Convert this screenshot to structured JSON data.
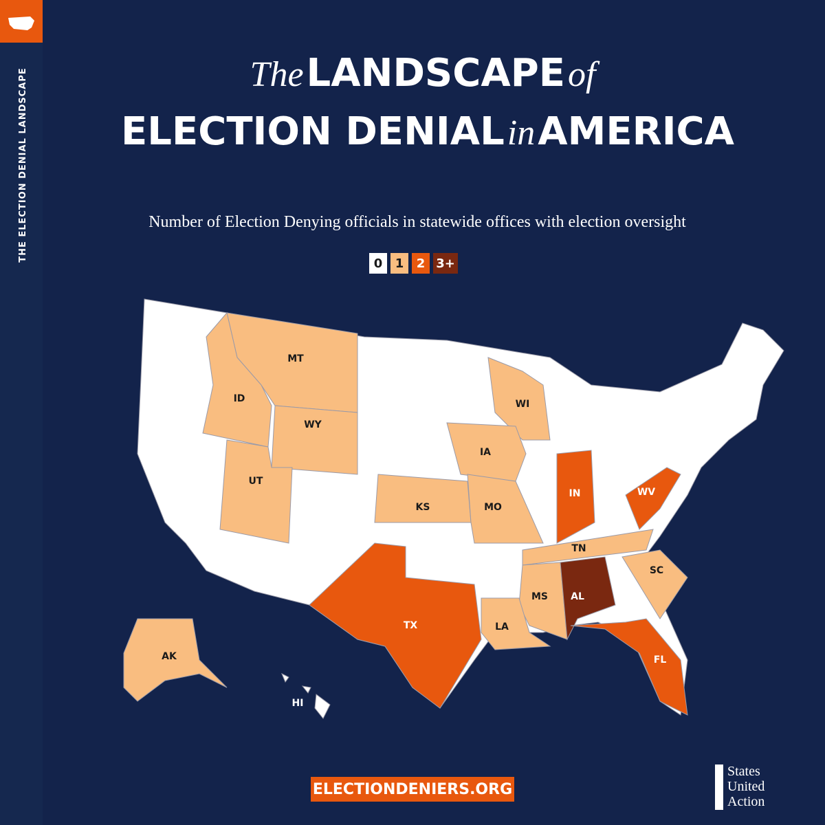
{
  "sidebar": {
    "text": "THE ELECTION DENIAL LANDSCAPE"
  },
  "title": {
    "line1": [
      "The",
      "LANDSCAPE",
      "of"
    ],
    "line2": [
      "ELECTION DENIAL",
      "in",
      "AMERICA"
    ]
  },
  "subtitle": "Number of Election Denying officials in statewide offices with election oversight",
  "legend": [
    {
      "label": "0",
      "color": "#ffffff",
      "text_color": "#1a1a1a"
    },
    {
      "label": "1",
      "color": "#f9bd80",
      "text_color": "#1a1a1a"
    },
    {
      "label": "2",
      "color": "#e8580e",
      "text_color": "#ffffff"
    },
    {
      "label": "3+",
      "color": "#7a2810",
      "text_color": "#ffffff"
    }
  ],
  "states": [
    {
      "label": "MT",
      "count": "1"
    },
    {
      "label": "ID",
      "count": "1"
    },
    {
      "label": "WY",
      "count": "1"
    },
    {
      "label": "UT",
      "count": "1"
    },
    {
      "label": "WI",
      "count": "1"
    },
    {
      "label": "IA",
      "count": "1"
    },
    {
      "label": "KS",
      "count": "1"
    },
    {
      "label": "MO",
      "count": "1"
    },
    {
      "label": "IN",
      "count": "2"
    },
    {
      "label": "WV",
      "count": "2"
    },
    {
      "label": "TN",
      "count": "1"
    },
    {
      "label": "SC",
      "count": "1"
    },
    {
      "label": "MS",
      "count": "1"
    },
    {
      "label": "AL",
      "count": "3+"
    },
    {
      "label": "LA",
      "count": "1"
    },
    {
      "label": "TX",
      "count": "2"
    },
    {
      "label": "FL",
      "count": "2"
    },
    {
      "label": "AK",
      "count": "1"
    },
    {
      "label": "HI",
      "count": "0"
    }
  ],
  "footer": {
    "url": "ELECTIONDENIERS.ORG",
    "logo": [
      "States",
      "United",
      "Action"
    ]
  }
}
